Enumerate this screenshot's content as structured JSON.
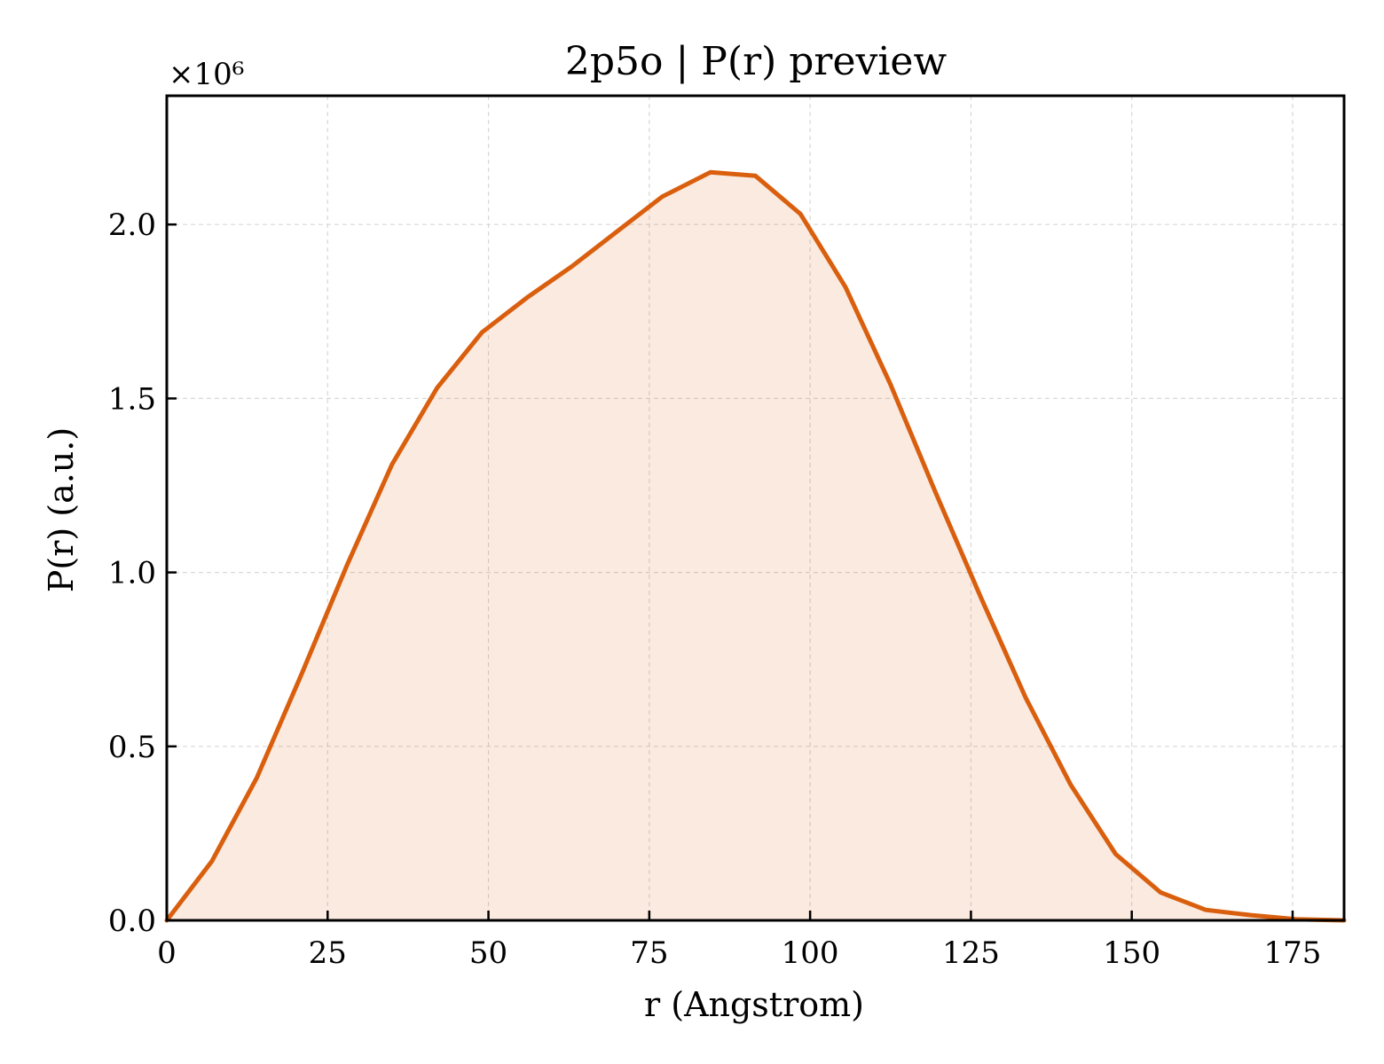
{
  "chart_data": {
    "type": "area",
    "title": "2p5o | P(r) preview",
    "xlabel": "r (Angstrom)",
    "ylabel": "P(r) (a.u.)",
    "y_offset_label": "×10⁶",
    "y_scale": 1000000,
    "xlim": [
      0,
      183
    ],
    "ylim": [
      0,
      2.37
    ],
    "xticks": [
      0,
      25,
      50,
      75,
      100,
      125,
      150,
      175
    ],
    "xtick_labels": [
      "0",
      "25",
      "50",
      "75",
      "100",
      "125",
      "150",
      "175"
    ],
    "yticks": [
      0.0,
      0.5,
      1.0,
      1.5,
      2.0
    ],
    "ytick_labels": [
      "0.0",
      "0.5",
      "1.0",
      "1.5",
      "2.0"
    ],
    "grid": true,
    "colors": {
      "line": "#d95f0e",
      "fill": "#d95f0e",
      "fill_opacity": 0.13
    },
    "series": [
      {
        "x": [
          0,
          7,
          14,
          21,
          28,
          35,
          42,
          49,
          56,
          63,
          70,
          77,
          84.5,
          91.5,
          98.5,
          105.5,
          112.5,
          119.5,
          126.5,
          133.5,
          140.5,
          147.5,
          154.5,
          161.5,
          168.5,
          175.5,
          183
        ],
        "y": [
          0.0,
          0.17,
          0.41,
          0.71,
          1.02,
          1.31,
          1.53,
          1.69,
          1.79,
          1.88,
          1.98,
          2.08,
          2.15,
          2.14,
          2.03,
          1.82,
          1.54,
          1.23,
          0.93,
          0.64,
          0.39,
          0.19,
          0.08,
          0.03,
          0.015,
          0.003,
          0.0
        ]
      }
    ]
  }
}
